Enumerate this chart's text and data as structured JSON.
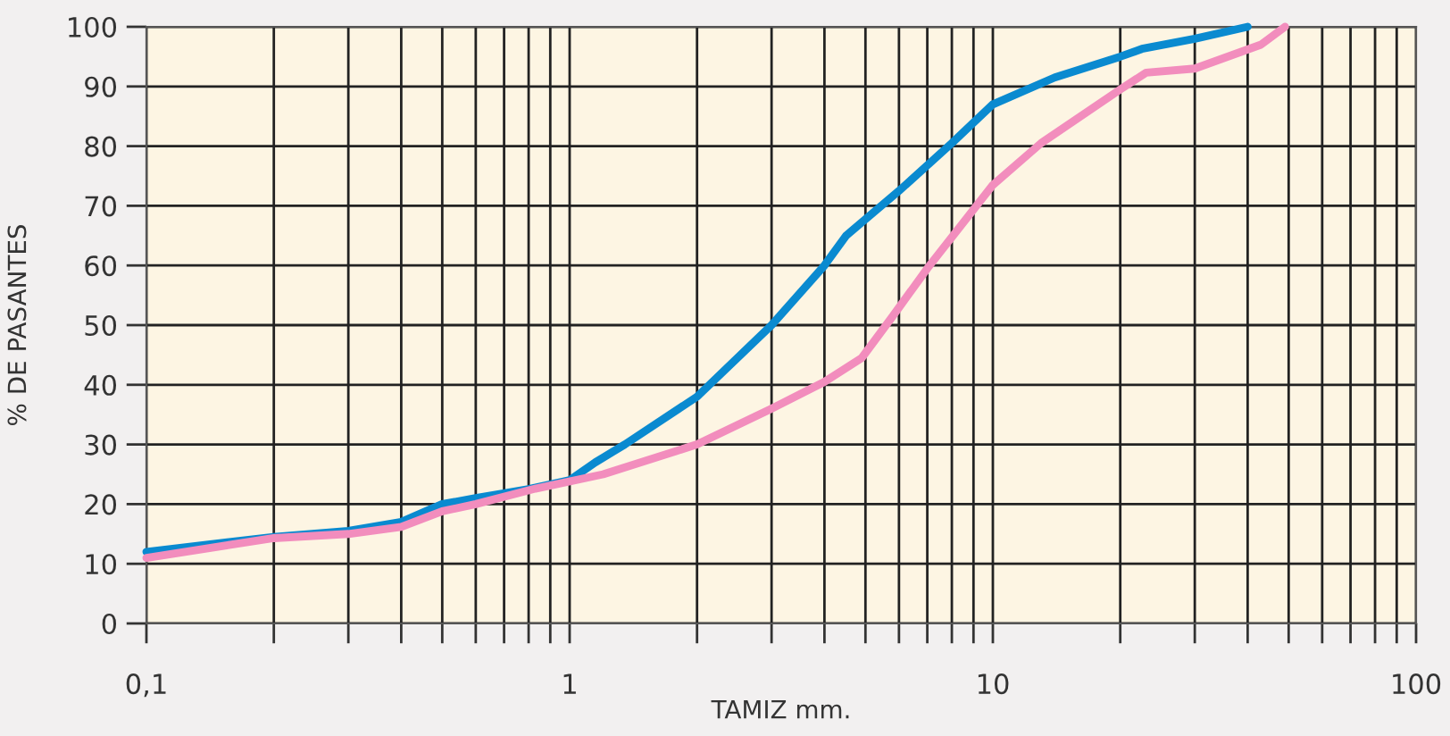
{
  "chart_data": {
    "type": "line",
    "xlabel": "TAMIZ mm.",
    "ylabel": "% DE PASANTES",
    "log": "x",
    "series": [
      {
        "color": "#0a8ad0",
        "x": [
          0.1,
          0.2,
          0.3,
          0.4,
          0.5,
          0.6,
          0.8,
          1.0,
          1.15,
          1.35,
          2,
          3,
          4,
          4.5,
          6,
          8,
          10,
          14,
          20,
          22.5,
          30,
          40
        ],
        "values": [
          12,
          14.5,
          15.5,
          17,
          20,
          21,
          22.5,
          24,
          27,
          30,
          38,
          50,
          60,
          65,
          72.5,
          80.5,
          87,
          91.5,
          95,
          96.3,
          98,
          100
        ]
      },
      {
        "color": "#f28dbd",
        "x": [
          0.1,
          0.2,
          0.3,
          0.4,
          0.5,
          0.6,
          0.83,
          1.2,
          2,
          3,
          4,
          4.9,
          5.8,
          7,
          10,
          13,
          20,
          23,
          30,
          43,
          49
        ],
        "values": [
          11,
          14.3,
          15,
          16.2,
          18.8,
          20,
          22.6,
          25,
          30,
          36,
          40.5,
          44.5,
          51.5,
          59.5,
          73.5,
          80.5,
          89.5,
          92.3,
          93,
          97,
          100
        ]
      }
    ],
    "xlim": [
      0.1,
      100
    ],
    "ylim": [
      0,
      100
    ],
    "xticks": [
      {
        "value": 0.1,
        "label": "0,1"
      },
      {
        "value": 0.2,
        "label": null
      },
      {
        "value": 0.3,
        "label": null
      },
      {
        "value": 0.4,
        "label": null
      },
      {
        "value": 0.5,
        "label": null
      },
      {
        "value": 0.6,
        "label": null
      },
      {
        "value": 0.7,
        "label": null
      },
      {
        "value": 0.8,
        "label": null
      },
      {
        "value": 0.9,
        "label": null
      },
      1,
      {
        "value": 2,
        "label": null
      },
      {
        "value": 3,
        "label": null
      },
      {
        "value": 4,
        "label": null
      },
      {
        "value": 5,
        "label": null
      },
      {
        "value": 6,
        "label": null
      },
      {
        "value": 7,
        "label": null
      },
      {
        "value": 8,
        "label": null
      },
      {
        "value": 9,
        "label": null
      },
      10,
      {
        "value": 20,
        "label": null
      },
      {
        "value": 30,
        "label": null
      },
      {
        "value": 40,
        "label": null
      },
      {
        "value": 50,
        "label": null
      },
      {
        "value": 60,
        "label": null
      },
      {
        "value": 70,
        "label": null
      },
      {
        "value": 80,
        "label": null
      },
      {
        "value": 90,
        "label": null
      },
      100
    ],
    "yticks": [
      0,
      10,
      20,
      30,
      40,
      50,
      60,
      70,
      80,
      90,
      100
    ],
    "grid": true,
    "marker": "none",
    "line_style": "solid"
  }
}
